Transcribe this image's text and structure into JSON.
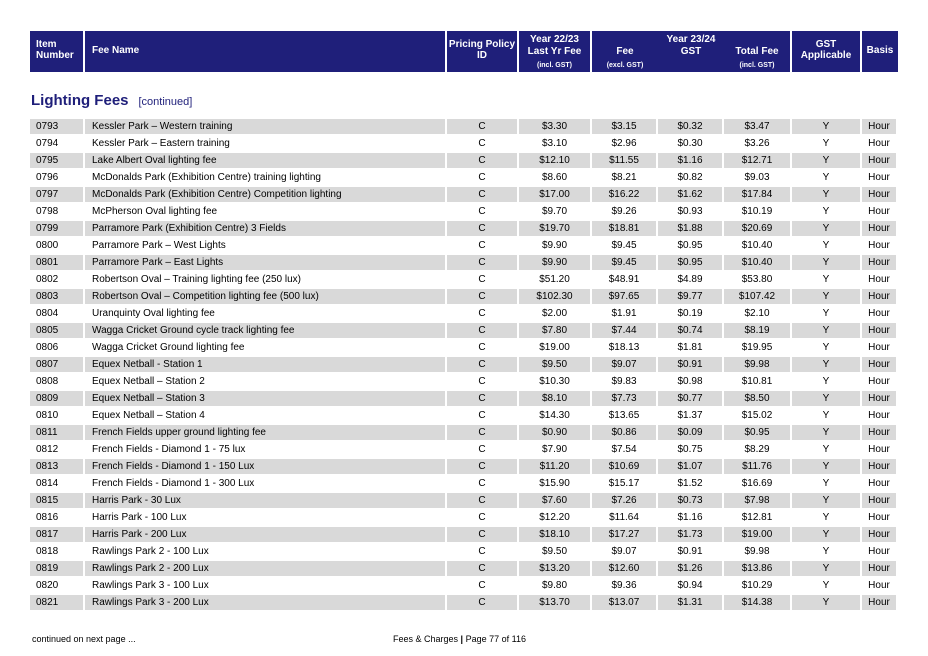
{
  "header": {
    "item_number": "Item Number",
    "fee_name": "Fee Name",
    "pricing_policy": "Pricing Policy ID",
    "year_prev": "Year 22/23",
    "last_yr_fee": "Last Yr Fee",
    "incl_gst": "(incl. GST)",
    "year_curr": "Year 23/24",
    "fee": "Fee",
    "excl_gst": "(excl. GST)",
    "gst": "GST",
    "total_fee": "Total Fee",
    "gst_applicable": "GST Applicable",
    "basis": "Basis"
  },
  "section": {
    "title": "Lighting Fees",
    "subtitle": "[continued]"
  },
  "rows": [
    {
      "item": "0793",
      "name": "Kessler Park – Western training",
      "policy": "C",
      "last": "$3.30",
      "fee": "$3.15",
      "gst": "$0.32",
      "total": "$3.47",
      "applicable": "Y",
      "basis": "Hour"
    },
    {
      "item": "0794",
      "name": "Kessler Park – Eastern training",
      "policy": "C",
      "last": "$3.10",
      "fee": "$2.96",
      "gst": "$0.30",
      "total": "$3.26",
      "applicable": "Y",
      "basis": "Hour"
    },
    {
      "item": "0795",
      "name": "Lake Albert Oval lighting fee",
      "policy": "C",
      "last": "$12.10",
      "fee": "$11.55",
      "gst": "$1.16",
      "total": "$12.71",
      "applicable": "Y",
      "basis": "Hour"
    },
    {
      "item": "0796",
      "name": "McDonalds Park (Exhibition Centre) training lighting",
      "policy": "C",
      "last": "$8.60",
      "fee": "$8.21",
      "gst": "$0.82",
      "total": "$9.03",
      "applicable": "Y",
      "basis": "Hour"
    },
    {
      "item": "0797",
      "name": "McDonalds Park (Exhibition Centre) Competition lighting",
      "policy": "C",
      "last": "$17.00",
      "fee": "$16.22",
      "gst": "$1.62",
      "total": "$17.84",
      "applicable": "Y",
      "basis": "Hour"
    },
    {
      "item": "0798",
      "name": "McPherson Oval lighting fee",
      "policy": "C",
      "last": "$9.70",
      "fee": "$9.26",
      "gst": "$0.93",
      "total": "$10.19",
      "applicable": "Y",
      "basis": "Hour"
    },
    {
      "item": "0799",
      "name": "Parramore Park (Exhibition Centre) 3 Fields",
      "policy": "C",
      "last": "$19.70",
      "fee": "$18.81",
      "gst": "$1.88",
      "total": "$20.69",
      "applicable": "Y",
      "basis": "Hour"
    },
    {
      "item": "0800",
      "name": "Parramore Park – West Lights",
      "policy": "C",
      "last": "$9.90",
      "fee": "$9.45",
      "gst": "$0.95",
      "total": "$10.40",
      "applicable": "Y",
      "basis": "Hour"
    },
    {
      "item": "0801",
      "name": "Parramore Park – East Lights",
      "policy": "C",
      "last": "$9.90",
      "fee": "$9.45",
      "gst": "$0.95",
      "total": "$10.40",
      "applicable": "Y",
      "basis": "Hour"
    },
    {
      "item": "0802",
      "name": "Robertson Oval – Training lighting fee (250 lux)",
      "policy": "C",
      "last": "$51.20",
      "fee": "$48.91",
      "gst": "$4.89",
      "total": "$53.80",
      "applicable": "Y",
      "basis": "Hour"
    },
    {
      "item": "0803",
      "name": "Robertson Oval – Competition lighting fee (500 lux)",
      "policy": "C",
      "last": "$102.30",
      "fee": "$97.65",
      "gst": "$9.77",
      "total": "$107.42",
      "applicable": "Y",
      "basis": "Hour"
    },
    {
      "item": "0804",
      "name": "Uranquinty Oval lighting fee",
      "policy": "C",
      "last": "$2.00",
      "fee": "$1.91",
      "gst": "$0.19",
      "total": "$2.10",
      "applicable": "Y",
      "basis": "Hour"
    },
    {
      "item": "0805",
      "name": "Wagga Cricket Ground cycle track lighting fee",
      "policy": "C",
      "last": "$7.80",
      "fee": "$7.44",
      "gst": "$0.74",
      "total": "$8.19",
      "applicable": "Y",
      "basis": "Hour"
    },
    {
      "item": "0806",
      "name": "Wagga Cricket Ground lighting fee",
      "policy": "C",
      "last": "$19.00",
      "fee": "$18.13",
      "gst": "$1.81",
      "total": "$19.95",
      "applicable": "Y",
      "basis": "Hour"
    },
    {
      "item": "0807",
      "name": "Equex Netball - Station 1",
      "policy": "C",
      "last": "$9.50",
      "fee": "$9.07",
      "gst": "$0.91",
      "total": "$9.98",
      "applicable": "Y",
      "basis": "Hour"
    },
    {
      "item": "0808",
      "name": "Equex Netball – Station 2",
      "policy": "C",
      "last": "$10.30",
      "fee": "$9.83",
      "gst": "$0.98",
      "total": "$10.81",
      "applicable": "Y",
      "basis": "Hour"
    },
    {
      "item": "0809",
      "name": "Equex Netball – Station 3",
      "policy": "C",
      "last": "$8.10",
      "fee": "$7.73",
      "gst": "$0.77",
      "total": "$8.50",
      "applicable": "Y",
      "basis": "Hour"
    },
    {
      "item": "0810",
      "name": "Equex Netball – Station 4",
      "policy": "C",
      "last": "$14.30",
      "fee": "$13.65",
      "gst": "$1.37",
      "total": "$15.02",
      "applicable": "Y",
      "basis": "Hour"
    },
    {
      "item": "0811",
      "name": "French Fields upper ground lighting fee",
      "policy": "C",
      "last": "$0.90",
      "fee": "$0.86",
      "gst": "$0.09",
      "total": "$0.95",
      "applicable": "Y",
      "basis": "Hour"
    },
    {
      "item": "0812",
      "name": "French Fields - Diamond 1 - 75 lux",
      "policy": "C",
      "last": "$7.90",
      "fee": "$7.54",
      "gst": "$0.75",
      "total": "$8.29",
      "applicable": "Y",
      "basis": "Hour"
    },
    {
      "item": "0813",
      "name": "French Fields - Diamond 1 - 150 Lux",
      "policy": "C",
      "last": "$11.20",
      "fee": "$10.69",
      "gst": "$1.07",
      "total": "$11.76",
      "applicable": "Y",
      "basis": "Hour"
    },
    {
      "item": "0814",
      "name": "French Fields - Diamond 1 - 300 Lux",
      "policy": "C",
      "last": "$15.90",
      "fee": "$15.17",
      "gst": "$1.52",
      "total": "$16.69",
      "applicable": "Y",
      "basis": "Hour"
    },
    {
      "item": "0815",
      "name": "Harris Park - 30 Lux",
      "policy": "C",
      "last": "$7.60",
      "fee": "$7.26",
      "gst": "$0.73",
      "total": "$7.98",
      "applicable": "Y",
      "basis": "Hour"
    },
    {
      "item": "0816",
      "name": "Harris Park - 100 Lux",
      "policy": "C",
      "last": "$12.20",
      "fee": "$11.64",
      "gst": "$1.16",
      "total": "$12.81",
      "applicable": "Y",
      "basis": "Hour"
    },
    {
      "item": "0817",
      "name": "Harris Park - 200 Lux",
      "policy": "C",
      "last": "$18.10",
      "fee": "$17.27",
      "gst": "$1.73",
      "total": "$19.00",
      "applicable": "Y",
      "basis": "Hour"
    },
    {
      "item": "0818",
      "name": "Rawlings Park 2 - 100 Lux",
      "policy": "C",
      "last": "$9.50",
      "fee": "$9.07",
      "gst": "$0.91",
      "total": "$9.98",
      "applicable": "Y",
      "basis": "Hour"
    },
    {
      "item": "0819",
      "name": "Rawlings Park 2 - 200 Lux",
      "policy": "C",
      "last": "$13.20",
      "fee": "$12.60",
      "gst": "$1.26",
      "total": "$13.86",
      "applicable": "Y",
      "basis": "Hour"
    },
    {
      "item": "0820",
      "name": "Rawlings Park 3 - 100 Lux",
      "policy": "C",
      "last": "$9.80",
      "fee": "$9.36",
      "gst": "$0.94",
      "total": "$10.29",
      "applicable": "Y",
      "basis": "Hour"
    },
    {
      "item": "0821",
      "name": "Rawlings Park 3 - 200 Lux",
      "policy": "C",
      "last": "$13.70",
      "fee": "$13.07",
      "gst": "$1.31",
      "total": "$14.38",
      "applicable": "Y",
      "basis": "Hour"
    }
  ],
  "footer": {
    "continued": "continued on next page ...",
    "doc_title": "Fees & Charges",
    "separator": "|",
    "page_info": "Page 77 of 116"
  },
  "colors": {
    "header_bg": "#1f1f7a",
    "row_shade": "#d9d9d9"
  }
}
